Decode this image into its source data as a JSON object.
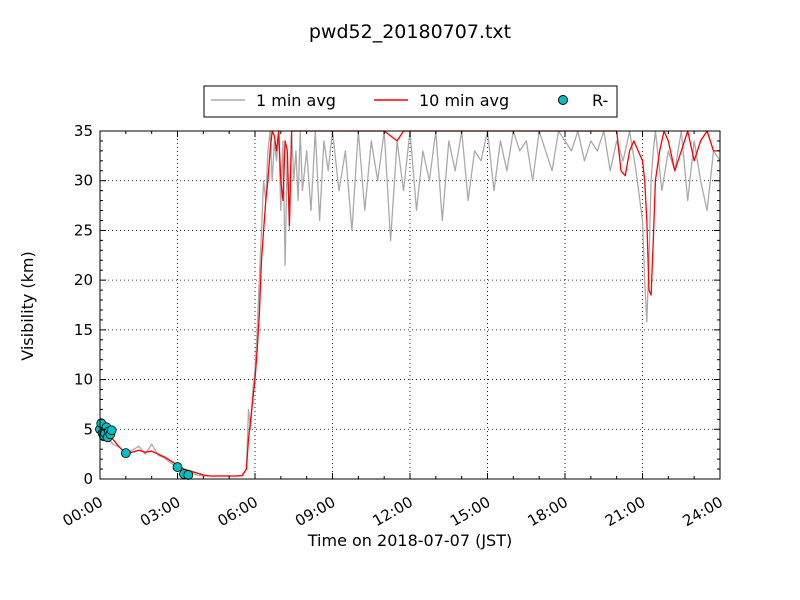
{
  "chart_data": {
    "type": "line",
    "title": "pwd52_20180707.txt",
    "xlabel": "Time on 2018-07-07 (JST)",
    "ylabel": "Visibility (km)",
    "xlim": [
      "00:00",
      "24:00"
    ],
    "ylim": [
      0,
      35
    ],
    "x_ticks": [
      "00:00",
      "03:00",
      "06:00",
      "09:00",
      "12:00",
      "15:00",
      "18:00",
      "21:00",
      "24:00"
    ],
    "y_ticks": [
      "0",
      "5",
      "10",
      "15",
      "20",
      "25",
      "30",
      "35"
    ],
    "grid": true,
    "legend": {
      "placement": "top-center"
    },
    "colors": {
      "one_min": "#aaaaaa",
      "ten_min": "#ff0000",
      "rain": "#00bfbf"
    },
    "series": [
      {
        "name": "1 min avg",
        "x": [
          "00:00",
          "00:10",
          "00:20",
          "00:30",
          "00:45",
          "01:00",
          "01:15",
          "01:30",
          "01:45",
          "02:00",
          "02:15",
          "02:30",
          "02:45",
          "03:00",
          "03:10",
          "03:20",
          "03:30",
          "03:45",
          "04:00",
          "04:15",
          "04:30",
          "04:45",
          "05:00",
          "05:15",
          "05:30",
          "05:40",
          "05:45",
          "05:50",
          "05:55",
          "06:00",
          "06:05",
          "06:10",
          "06:15",
          "06:20",
          "06:25",
          "06:30",
          "06:35",
          "06:40",
          "06:45",
          "06:50",
          "06:55",
          "07:00",
          "07:05",
          "07:10",
          "07:15",
          "07:20",
          "07:25",
          "07:30",
          "07:35",
          "07:40",
          "07:45",
          "07:50",
          "08:00",
          "08:10",
          "08:20",
          "08:30",
          "08:40",
          "08:50",
          "09:00",
          "09:15",
          "09:30",
          "09:45",
          "10:00",
          "10:15",
          "10:30",
          "10:45",
          "11:00",
          "11:15",
          "11:30",
          "11:45",
          "12:00",
          "12:15",
          "12:30",
          "12:45",
          "13:00",
          "13:15",
          "13:30",
          "13:45",
          "14:00",
          "14:15",
          "14:30",
          "14:45",
          "15:00",
          "15:15",
          "15:30",
          "15:45",
          "16:00",
          "16:15",
          "16:30",
          "16:45",
          "17:00",
          "17:15",
          "17:30",
          "17:45",
          "18:00",
          "18:15",
          "18:30",
          "18:45",
          "19:00",
          "19:15",
          "19:30",
          "19:45",
          "20:00",
          "20:15",
          "20:30",
          "20:45",
          "21:00",
          "21:05",
          "21:10",
          "21:15",
          "21:20",
          "21:25",
          "21:30",
          "21:45",
          "22:00",
          "22:15",
          "22:30",
          "22:45",
          "23:00",
          "23:15",
          "23:30",
          "23:45",
          "24:00"
        ],
        "y": [
          5.4,
          4.6,
          4.0,
          3.5,
          3.2,
          2.6,
          2.9,
          3.3,
          2.5,
          3.5,
          2.4,
          2.1,
          1.6,
          1.2,
          0.9,
          0.6,
          0.7,
          0.4,
          0.3,
          0.3,
          0.3,
          0.3,
          0.3,
          0.3,
          0.3,
          1.0,
          7.0,
          5.0,
          9.0,
          11.0,
          15.0,
          20.0,
          25.0,
          30.0,
          28.0,
          33.0,
          35.0,
          30.0,
          34.0,
          32.0,
          35.0,
          27.0,
          34.0,
          21.5,
          33.0,
          25.0,
          35.0,
          30.0,
          33.0,
          28.0,
          35.0,
          29.0,
          33.0,
          27.0,
          35.0,
          26.0,
          34.0,
          31.0,
          35.0,
          29.0,
          33.0,
          25.0,
          35.0,
          27.0,
          34.0,
          30.0,
          35.0,
          24.0,
          34.0,
          29.0,
          35.0,
          27.0,
          33.0,
          30.0,
          35.0,
          26.0,
          34.0,
          31.0,
          35.0,
          28.0,
          33.0,
          32.0,
          35.0,
          29.0,
          34.0,
          31.0,
          35.0,
          33.0,
          34.0,
          30.0,
          35.0,
          33.0,
          31.0,
          35.0,
          34.0,
          33.0,
          35.0,
          32.0,
          34.0,
          33.0,
          35.0,
          31.0,
          34.0,
          32.0,
          35.0,
          31.0,
          26.0,
          20.0,
          15.8,
          22.0,
          30.0,
          33.0,
          35.0,
          29.0,
          33.0,
          31.0,
          35.0,
          28.0,
          34.0,
          30.0,
          27.0,
          33.0,
          32.0
        ]
      },
      {
        "name": "10 min avg",
        "x": [
          "00:00",
          "00:15",
          "00:30",
          "00:45",
          "01:00",
          "01:15",
          "01:30",
          "01:45",
          "02:00",
          "02:15",
          "02:30",
          "02:45",
          "03:00",
          "03:15",
          "03:30",
          "03:45",
          "04:00",
          "04:15",
          "04:30",
          "04:45",
          "05:00",
          "05:15",
          "05:30",
          "05:40",
          "05:45",
          "05:50",
          "05:55",
          "06:00",
          "06:05",
          "06:10",
          "06:15",
          "06:20",
          "06:25",
          "06:30",
          "06:35",
          "06:40",
          "06:45",
          "06:50",
          "06:55",
          "07:00",
          "07:05",
          "07:10",
          "07:15",
          "07:20",
          "07:25",
          "07:30",
          "07:40",
          "07:50",
          "08:00",
          "08:30",
          "09:00",
          "10:00",
          "11:00",
          "11:30",
          "11:45",
          "12:00",
          "13:00",
          "14:00",
          "15:00",
          "16:00",
          "17:00",
          "18:00",
          "19:00",
          "20:00",
          "20:10",
          "20:20",
          "20:30",
          "20:40",
          "20:50",
          "21:00",
          "21:05",
          "21:10",
          "21:15",
          "21:20",
          "21:25",
          "21:30",
          "21:40",
          "21:50",
          "22:00",
          "22:15",
          "22:30",
          "22:45",
          "23:00",
          "23:15",
          "23:30",
          "23:45",
          "24:00"
        ],
        "y": [
          5.0,
          4.5,
          4.0,
          3.2,
          2.6,
          2.7,
          2.9,
          2.7,
          2.8,
          2.5,
          2.2,
          1.8,
          1.4,
          1.0,
          0.8,
          0.6,
          0.4,
          0.3,
          0.3,
          0.3,
          0.3,
          0.3,
          0.35,
          1.0,
          4.0,
          6.0,
          8.0,
          10.0,
          13.0,
          16.5,
          22.0,
          25.0,
          28.0,
          30.0,
          33.0,
          35.0,
          34.5,
          33.0,
          35.0,
          30.0,
          28.0,
          34.0,
          33.0,
          25.5,
          35.0,
          35.0,
          35.0,
          35.0,
          35.0,
          35.0,
          35.0,
          35.0,
          35.0,
          34.0,
          35.0,
          35.0,
          35.0,
          35.0,
          35.0,
          35.0,
          35.0,
          35.0,
          35.0,
          35.0,
          31.0,
          30.5,
          33.0,
          34.0,
          33.0,
          32.0,
          30.0,
          26.0,
          19.0,
          18.5,
          24.0,
          30.0,
          33.0,
          35.0,
          34.0,
          31.0,
          33.0,
          35.0,
          32.0,
          34.0,
          35.0,
          33.0,
          33.0
        ]
      },
      {
        "name": "R-",
        "x": [
          "00:00",
          "00:03",
          "00:06",
          "00:09",
          "00:12",
          "00:15",
          "00:18",
          "00:21",
          "00:24",
          "00:27",
          "01:00",
          "03:00",
          "03:15",
          "03:25"
        ],
        "y": [
          5.0,
          5.6,
          4.6,
          4.3,
          4.6,
          5.2,
          4.2,
          4.8,
          4.5,
          4.9,
          2.6,
          1.2,
          0.5,
          0.4
        ]
      }
    ]
  }
}
